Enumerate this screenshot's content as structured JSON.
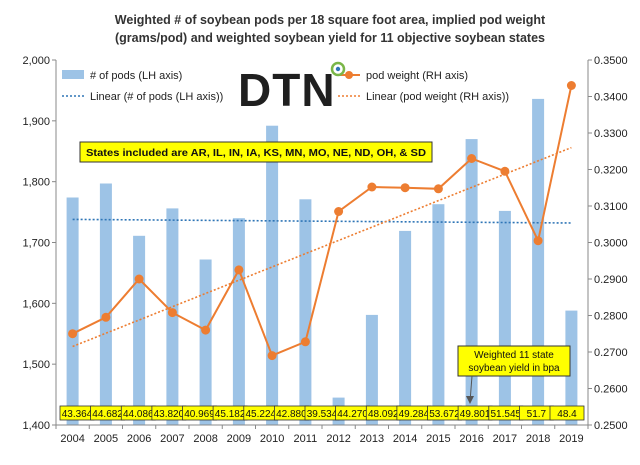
{
  "chart_data": {
    "type": "bar",
    "title_lines": [
      "Weighted # of soybean pods per 18 square foot area, implied pod weight",
      "(grams/pod) and weighted soybean yield for 11 objective soybean states"
    ],
    "categories": [
      "2004",
      "2005",
      "2006",
      "2007",
      "2008",
      "2009",
      "2010",
      "2011",
      "2012",
      "2013",
      "2014",
      "2015",
      "2016",
      "2017",
      "2018",
      "2019"
    ],
    "series": [
      {
        "name": "# of pods (LH axis)",
        "type": "bar",
        "axis": "left",
        "color": "#9dc3e6",
        "values": [
          1774,
          1797,
          1711,
          1756,
          1672,
          1740,
          1892,
          1771,
          1445,
          1581,
          1719,
          1763,
          1870,
          1752,
          1936,
          1588
        ]
      },
      {
        "name": "pod weight (RH axis)",
        "type": "line",
        "axis": "right",
        "color": "#ed7d31",
        "values": [
          0.275,
          0.2795,
          0.29,
          0.2808,
          0.276,
          0.2925,
          0.269,
          0.2728,
          0.3085,
          0.3152,
          0.315,
          0.3147,
          0.323,
          0.3195,
          0.3005,
          0.343
        ]
      }
    ],
    "trendlines": [
      {
        "name": "Linear (# of pods (LH axis))",
        "axis": "left",
        "color": "#2e75b6",
        "start": 1738,
        "end": 1732
      },
      {
        "name": "Linear (pod weight (RH axis))",
        "axis": "right",
        "color": "#ed7d31",
        "start": 0.2715,
        "end": 0.326
      }
    ],
    "yield_labels": [
      "43.364",
      "44.682",
      "44.086",
      "43.820",
      "40.969",
      "45.182",
      "45.224",
      "42.880",
      "39.534",
      "44.270",
      "48.092",
      "49.284",
      "53.672",
      "49.801",
      "51.545",
      "51.7",
      "48.4"
    ],
    "ylim_left": [
      1400,
      2000
    ],
    "yticks_left": [
      1400,
      1500,
      1600,
      1700,
      1800,
      1900,
      2000
    ],
    "yticklabels_left": [
      "1,400",
      "1,500",
      "1,600",
      "1,700",
      "1,800",
      "1,900",
      "2,000"
    ],
    "ylim_right": [
      0.25,
      0.35
    ],
    "yticks_right": [
      0.25,
      0.26,
      0.27,
      0.28,
      0.29,
      0.3,
      0.31,
      0.32,
      0.33,
      0.34,
      0.35
    ],
    "yticklabels_right": [
      "0.2500",
      "0.2600",
      "0.2700",
      "0.2800",
      "0.2900",
      "0.3000",
      "0.3100",
      "0.3200",
      "0.3300",
      "0.3400",
      "0.3500"
    ],
    "grid": false,
    "legend_placement": "top",
    "states_note": "States included are AR, IL, IN, IA, KS, MN, MO, NE, ND, OH, & SD",
    "yield_note_lines": [
      "Weighted 11 state",
      "soybean yield in bpa"
    ],
    "logo_text": "DTN",
    "colors": {
      "highlight_box": "#ffff00",
      "accent_green": "#7ab648",
      "accent_blue": "#2e75b6"
    }
  }
}
